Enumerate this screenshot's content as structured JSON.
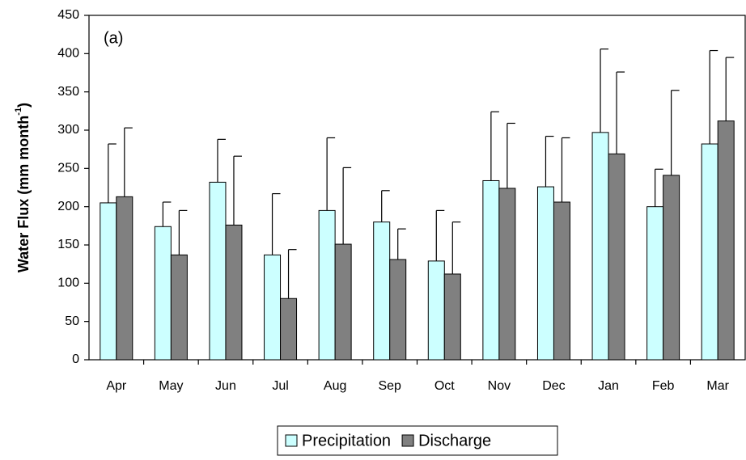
{
  "chart_data": {
    "type": "bar",
    "annotation": "(a)",
    "y_label": "Water Flux (mm month",
    "y_label_sup": "-1",
    "y_label_end": ")",
    "categories": [
      "Apr",
      "May",
      "Jun",
      "Jul",
      "Aug",
      "Sep",
      "Oct",
      "Nov",
      "Dec",
      "Jan",
      "Feb",
      "Mar"
    ],
    "series": [
      {
        "name": "Precipitation",
        "color": "#ccffff",
        "values": [
          205,
          174,
          232,
          137,
          195,
          180,
          129,
          234,
          226,
          297,
          200,
          282
        ],
        "errors": [
          77,
          32,
          56,
          80,
          95,
          41,
          66,
          90,
          66,
          109,
          49,
          122
        ]
      },
      {
        "name": "Discharge",
        "color": "#808080",
        "values": [
          213,
          137,
          176,
          80,
          151,
          131,
          112,
          224,
          206,
          269,
          241,
          312
        ],
        "errors": [
          90,
          58,
          90,
          64,
          100,
          40,
          68,
          85,
          84,
          107,
          111,
          83
        ]
      }
    ],
    "ylim": [
      0,
      450
    ],
    "yticks": [
      0,
      50,
      100,
      150,
      200,
      250,
      300,
      350,
      400,
      450
    ],
    "grid": false,
    "legend": "bottom"
  }
}
